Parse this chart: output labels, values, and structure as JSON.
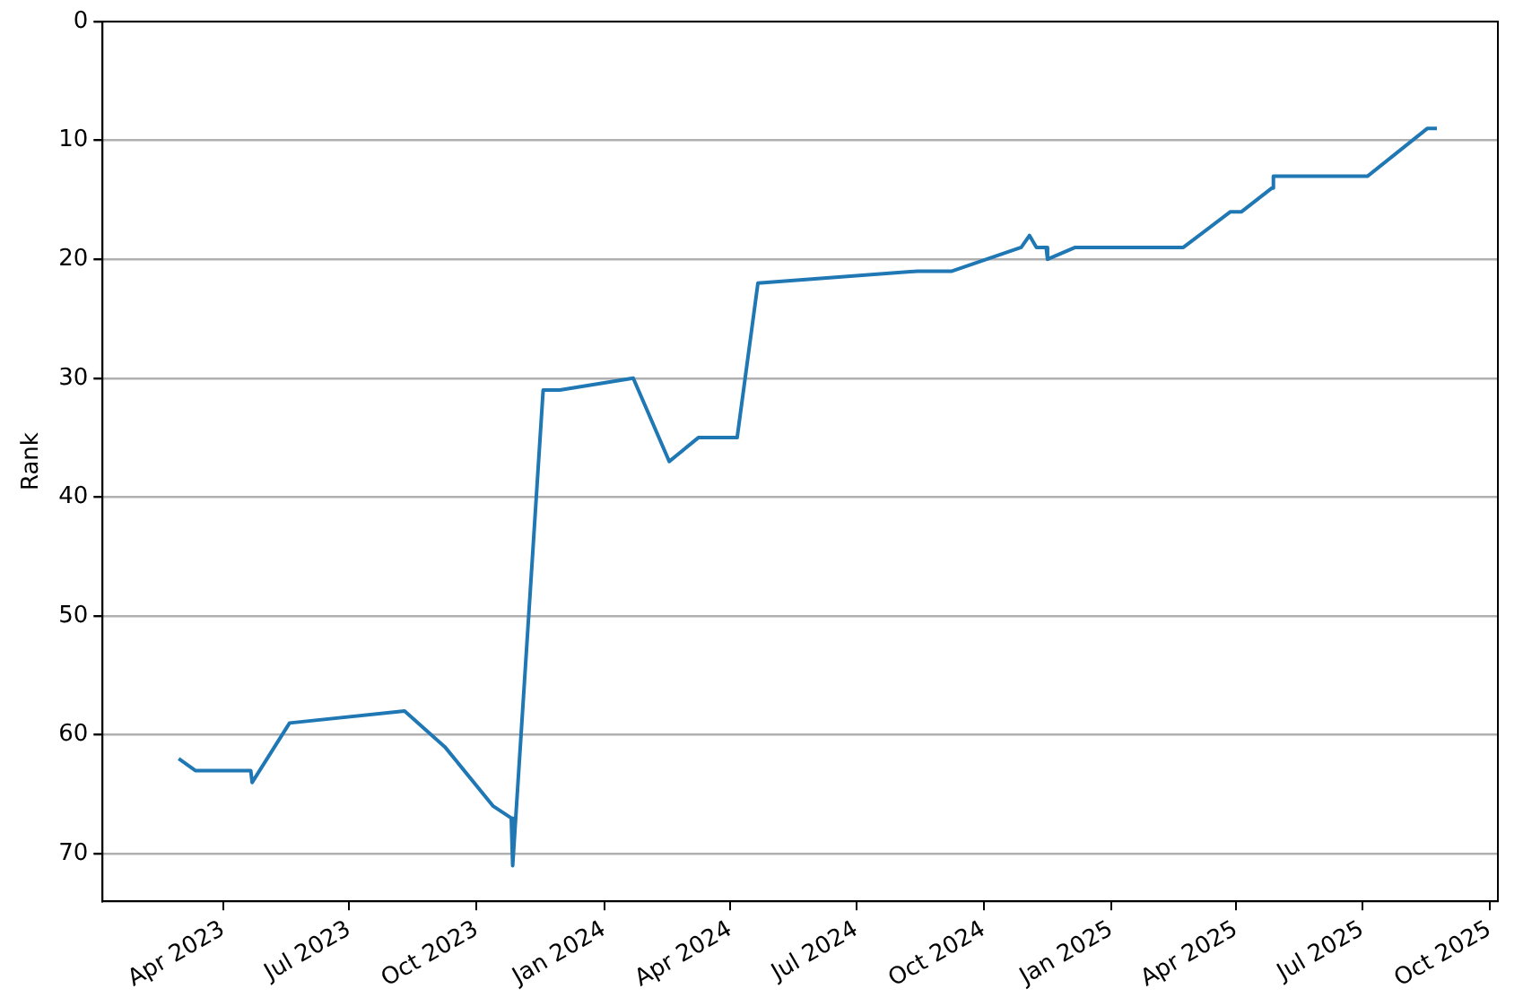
{
  "chart_data": {
    "type": "line",
    "ylabel": "Rank",
    "x": [
      "2023-02-28",
      "2023-03-12",
      "2023-04-21",
      "2023-04-22",
      "2023-05-19",
      "2023-08-10",
      "2023-09-08",
      "2023-10-13",
      "2023-10-26",
      "2023-10-27",
      "2023-11-18",
      "2023-11-30",
      "2024-01-22",
      "2024-02-17",
      "2024-03-09",
      "2024-04-06",
      "2024-04-21",
      "2024-08-14",
      "2024-09-08",
      "2024-10-28",
      "2024-11-03",
      "2024-11-08",
      "2024-11-15",
      "2024-11-16",
      "2024-12-06",
      "2025-02-22",
      "2025-03-28",
      "2025-04-05",
      "2025-04-27",
      "2025-04-28",
      "2025-07-05",
      "2025-08-17",
      "2025-08-24"
    ],
    "series": [
      {
        "color": "#1f77b4",
        "values": [
          62,
          63,
          63,
          64,
          59,
          58,
          61,
          66,
          67,
          71,
          31,
          31,
          30,
          37,
          35,
          35,
          22,
          21,
          21,
          19,
          18,
          19,
          19,
          20,
          19,
          19,
          16,
          16,
          14,
          13,
          13,
          9,
          9
        ]
      }
    ],
    "xlim": [
      "2023-01-04",
      "2025-10-07"
    ],
    "xticks": [
      {
        "value": "2023-04-01",
        "label": "Apr 2023"
      },
      {
        "value": "2023-07-01",
        "label": "Jul 2023"
      },
      {
        "value": "2023-10-01",
        "label": "Oct 2023"
      },
      {
        "value": "2024-01-01",
        "label": "Jan 2024"
      },
      {
        "value": "2024-04-01",
        "label": "Apr 2024"
      },
      {
        "value": "2024-07-01",
        "label": "Jul 2024"
      },
      {
        "value": "2024-10-01",
        "label": "Oct 2024"
      },
      {
        "value": "2025-01-01",
        "label": "Jan 2025"
      },
      {
        "value": "2025-04-01",
        "label": "Apr 2025"
      },
      {
        "value": "2025-07-01",
        "label": "Jul 2025"
      },
      {
        "value": "2025-10-01",
        "label": "Oct 2025"
      }
    ],
    "ylim": [
      74,
      0
    ],
    "yticks": [
      0,
      10,
      20,
      30,
      40,
      50,
      60,
      70
    ],
    "grid": "y",
    "legend": false,
    "marker": "none",
    "line_style": "solid"
  }
}
